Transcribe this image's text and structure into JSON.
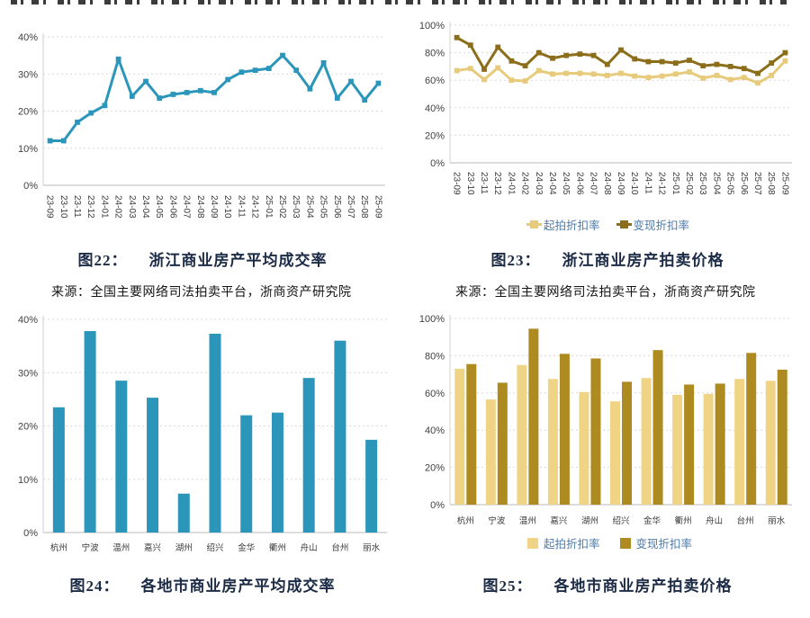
{
  "figures": [
    {
      "caption_label": "图22：",
      "caption_title": "浙江商业房产平均成交率",
      "source": "来源：全国主要网络司法拍卖平台，浙商资产研究院"
    },
    {
      "caption_label": "图23：",
      "caption_title": "浙江商业房产拍卖价格",
      "source": "来源：全国主要网络司法拍卖平台，浙商资产研究院"
    },
    {
      "caption_label": "图24：",
      "caption_title": "各地市商业房产平均成交率"
    },
    {
      "caption_label": "图25：",
      "caption_title": "各地市商业房产拍卖价格"
    }
  ],
  "chart_data": [
    {
      "type": "line",
      "title": "浙江商业房产平均成交率",
      "categories": [
        "23-09",
        "23-10",
        "23-11",
        "23-12",
        "24-01",
        "24-02",
        "24-03",
        "24-04",
        "24-05",
        "24-06",
        "24-07",
        "24-08",
        "24-09",
        "24-10",
        "24-11",
        "24-12",
        "25-01",
        "25-02",
        "25-03",
        "25-04",
        "25-05",
        "25-06",
        "25-07",
        "25-08",
        "25-09"
      ],
      "series": [
        {
          "name": "",
          "color": "#2b96ba",
          "values": [
            12,
            12,
            17,
            19.5,
            21.5,
            34,
            24,
            28,
            23.5,
            24.5,
            25,
            25.5,
            25,
            28.5,
            30.5,
            31,
            31.5,
            35,
            31,
            26,
            33,
            23.5,
            28,
            23,
            27.5
          ]
        }
      ],
      "ylim": [
        0,
        40
      ],
      "yticks": [
        0,
        10,
        20,
        30,
        40
      ],
      "grid": true,
      "legend": "none"
    },
    {
      "type": "line",
      "title": "浙江商业房产拍卖价格",
      "categories": [
        "23-09",
        "23-10",
        "23-11",
        "23-12",
        "24-01",
        "24-02",
        "24-03",
        "24-04",
        "24-05",
        "24-06",
        "24-07",
        "24-08",
        "24-09",
        "24-10",
        "24-11",
        "24-12",
        "25-01",
        "25-02",
        "25-03",
        "25-04",
        "25-05",
        "25-06",
        "25-07",
        "25-08",
        "25-09"
      ],
      "series": [
        {
          "name": "起拍折扣率",
          "color": "#e7ca7b",
          "values": [
            67,
            68.5,
            60.5,
            69,
            60,
            59.5,
            67,
            64.5,
            65,
            65,
            64.5,
            63.5,
            65,
            63,
            62,
            63,
            64.5,
            66,
            61.5,
            63.5,
            60.5,
            62,
            58,
            63.5,
            74
          ]
        },
        {
          "name": "变现折扣率",
          "color": "#8c6e1a",
          "values": [
            91,
            85.5,
            68,
            84,
            74,
            70.5,
            80,
            76,
            78,
            79,
            78,
            71.5,
            82,
            75.5,
            73.5,
            73.5,
            72.5,
            74.5,
            70.5,
            71.5,
            70,
            68.5,
            65,
            72.5,
            80
          ]
        }
      ],
      "ylim": [
        0,
        100
      ],
      "yticks": [
        0,
        20,
        40,
        60,
        80,
        100
      ],
      "grid": true,
      "legend": "bottom"
    },
    {
      "type": "bar",
      "title": "各地市商业房产平均成交率",
      "categories": [
        "杭州",
        "宁波",
        "温州",
        "嘉兴",
        "湖州",
        "绍兴",
        "金华",
        "衢州",
        "舟山",
        "台州",
        "丽水"
      ],
      "series": [
        {
          "name": "",
          "color": "#2b96ba",
          "values": [
            23.5,
            37.8,
            28.5,
            25.3,
            7.3,
            37.3,
            22,
            22.5,
            29,
            36,
            17.4
          ]
        }
      ],
      "ylim": [
        0,
        40
      ],
      "yticks": [
        0,
        10,
        20,
        30,
        40
      ],
      "grid": true,
      "legend": "none"
    },
    {
      "type": "bar",
      "title": "各地市商业房产拍卖价格",
      "categories": [
        "杭州",
        "宁波",
        "温州",
        "嘉兴",
        "湖州",
        "绍兴",
        "金华",
        "衢州",
        "舟山",
        "台州",
        "丽水"
      ],
      "series": [
        {
          "name": "起拍折扣率",
          "color": "#f0d486",
          "values": [
            73,
            56.5,
            75,
            67.5,
            60.5,
            55.5,
            68,
            59,
            59.5,
            67.5,
            66.5
          ]
        },
        {
          "name": "变现折扣率",
          "color": "#ad8b20",
          "values": [
            75.5,
            65.5,
            94.5,
            81,
            78.5,
            66,
            83,
            64.5,
            65,
            81.5,
            72.5
          ]
        }
      ],
      "ylim": [
        0,
        100
      ],
      "yticks": [
        0,
        20,
        40,
        60,
        80,
        100
      ],
      "grid": true,
      "legend": "bottom"
    }
  ]
}
